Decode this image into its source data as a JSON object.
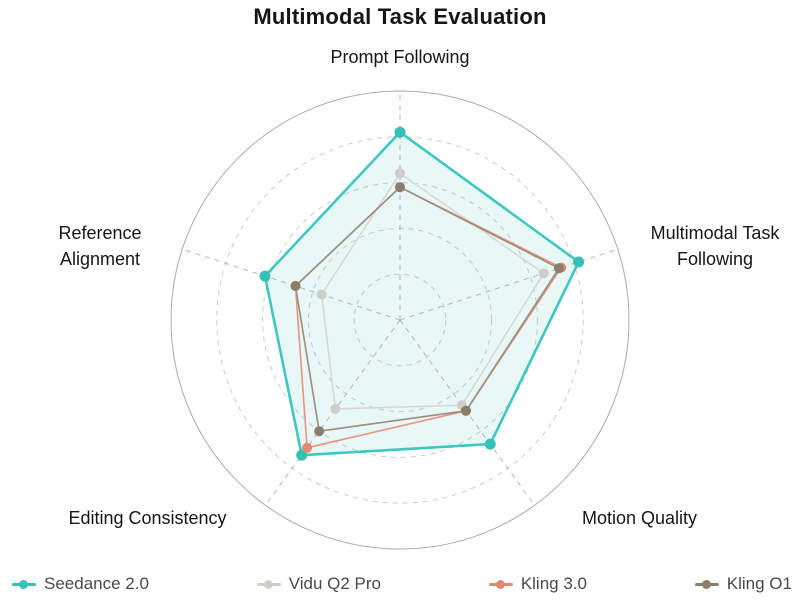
{
  "title": "Multimodal Task Evaluation",
  "chart_data": {
    "type": "radar",
    "title": "Multimodal Task Evaluation",
    "axes": [
      "Prompt Following",
      "Multimodal Task Following",
      "Motion Quality",
      "Editing Consistency",
      "Reference Alignment"
    ],
    "max": 1.0,
    "grid": "dashed concentric circles with dashed radial spokes, solid outer circle",
    "grid_rings": [
      0.2,
      0.4,
      0.6,
      0.8,
      1.0
    ],
    "legend_position": "bottom",
    "series": [
      {
        "name": "Seedance 2.0",
        "color": "#3fc8c0",
        "point_color": "#35c0b8",
        "fill": "rgba(69,201,193,0.13)",
        "line_width": 2.6,
        "point_radius": 5.5,
        "values": [
          0.82,
          0.82,
          0.67,
          0.73,
          0.62
        ]
      },
      {
        "name": "Vidu Q2 Pro",
        "color": "#d9d8d2",
        "point_color": "#cfcec8",
        "fill": "none",
        "line_width": 1.6,
        "point_radius": 5,
        "values": [
          0.64,
          0.66,
          0.46,
          0.48,
          0.36
        ]
      },
      {
        "name": "Kling 3.0",
        "color": "#e9937f",
        "point_color": "#e08a74",
        "fill": "none",
        "line_width": 1.6,
        "point_radius": 5,
        "values": [
          0.58,
          0.74,
          0.49,
          0.69,
          0.48
        ]
      },
      {
        "name": "Kling O1",
        "color": "#9a8e7c",
        "point_color": "#8c7e6d",
        "fill": "none",
        "line_width": 1.6,
        "point_radius": 5,
        "values": [
          0.58,
          0.73,
          0.49,
          0.6,
          0.48
        ]
      }
    ]
  }
}
